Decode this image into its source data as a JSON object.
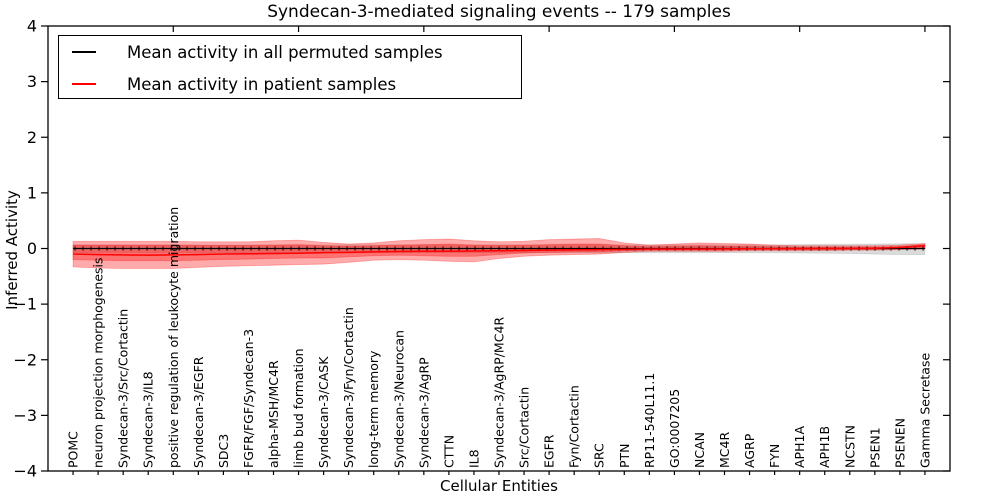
{
  "figure": {
    "background": "#ffffff"
  },
  "chart_data": {
    "type": "line",
    "title": "Syndecan-3-mediated signaling events -- 179 samples",
    "xlabel": "Cellular Entities",
    "ylabel": "Inferred Activity",
    "ylim": [
      -4,
      4
    ],
    "xlim": [
      0,
      36
    ],
    "grid": false,
    "ytick_values": [
      4,
      3,
      2,
      1,
      0,
      -1,
      -2,
      -3,
      -4
    ],
    "ytick_labels": [
      "4",
      "3",
      "2",
      "1",
      "0",
      "−1",
      "−2",
      "−3",
      "−4"
    ],
    "xtick_major_positions": [
      5,
      10,
      15,
      20,
      25,
      30,
      35
    ],
    "categories": [
      "POMC",
      "neuron projection morphogenesis",
      "Syndecan-3/Src/Cortactin",
      "Syndecan-3/IL8",
      "positive regulation of leukocyte migration",
      "Syndecan-3/EGFR",
      "SDC3",
      "FGFR/FGF/Syndecan-3",
      "alpha-MSH/MC4R",
      "limb bud formation",
      "Syndecan-3/CASK",
      "Syndecan-3/Fyn/Cortactin",
      "long-term memory",
      "Syndecan-3/Neurocan",
      "Syndecan-3/AgRP",
      "CTTN",
      "IL8",
      "Syndecan-3/AgRP/MC4R",
      "Src/Cortactin",
      "EGFR",
      "Fyn/Cortactin",
      "SRC",
      "PTN",
      "RP11-540L11.1",
      "GO:0007205",
      "NCAN",
      "MC4R",
      "AGRP",
      "FYN",
      "APH1A",
      "APH1B",
      "NCSTN",
      "PSEN1",
      "PSENEN",
      "Gamma Secretase"
    ],
    "legend": {
      "position": "upper left",
      "entries": [
        {
          "label": "Mean activity in all permuted samples",
          "color": "#000000"
        },
        {
          "label": "Mean activity in patient samples",
          "color": "#ff0000"
        }
      ]
    },
    "series": [
      {
        "name": "Mean activity in all permuted samples",
        "color": "#000000",
        "values": [
          0,
          0,
          0,
          0,
          0,
          0,
          0,
          0,
          0,
          0,
          0,
          0,
          0,
          0,
          0,
          0,
          0,
          0,
          0,
          0,
          0,
          0,
          0,
          0,
          0,
          0,
          0,
          0,
          0,
          0,
          0,
          0,
          0,
          0,
          0
        ]
      },
      {
        "name": "Mean activity in patient samples",
        "color": "#ff0000",
        "values": [
          -0.1,
          -0.11,
          -0.115,
          -0.12,
          -0.115,
          -0.11,
          -0.1,
          -0.095,
          -0.09,
          -0.085,
          -0.075,
          -0.07,
          -0.06,
          -0.055,
          -0.05,
          -0.05,
          -0.045,
          -0.04,
          -0.035,
          -0.03,
          -0.025,
          -0.02,
          -0.015,
          -0.01,
          -0.01,
          -0.008,
          -0.006,
          -0.005,
          -0.004,
          -0.002,
          0,
          0,
          0.005,
          0.02,
          0.05
        ]
      }
    ],
    "bands": [
      {
        "name": "permuted-stddev",
        "color": "#888888",
        "opacity": 0.3,
        "upper": [
          0.065,
          0.065,
          0.065,
          0.065,
          0.065,
          0.065,
          0.065,
          0.065,
          0.065,
          0.065,
          0.065,
          0.065,
          0.065,
          0.065,
          0.065,
          0.065,
          0.065,
          0.065,
          0.065,
          0.065,
          0.065,
          0.065,
          0.065,
          0.065,
          0.065,
          0.065,
          0.065,
          0.065,
          0.065,
          0.07,
          0.075,
          0.075,
          0.08,
          0.085,
          0.085
        ],
        "lower": [
          -0.075,
          -0.075,
          -0.075,
          -0.075,
          -0.075,
          -0.075,
          -0.075,
          -0.075,
          -0.075,
          -0.075,
          -0.075,
          -0.075,
          -0.075,
          -0.075,
          -0.075,
          -0.075,
          -0.075,
          -0.075,
          -0.075,
          -0.075,
          -0.075,
          -0.075,
          -0.075,
          -0.075,
          -0.075,
          -0.075,
          -0.075,
          -0.075,
          -0.075,
          -0.08,
          -0.085,
          -0.09,
          -0.1,
          -0.11,
          -0.11
        ]
      },
      {
        "name": "patient-stddev-outer",
        "color": "#ff0000",
        "opacity": 0.33,
        "upper": [
          0.13,
          0.13,
          0.13,
          0.13,
          0.13,
          0.12,
          0.12,
          0.12,
          0.14,
          0.15,
          0.11,
          0.08,
          0.1,
          0.14,
          0.16,
          0.17,
          0.14,
          0.12,
          0.13,
          0.16,
          0.17,
          0.18,
          0.1,
          0.06,
          0.08,
          0.1,
          0.09,
          0.08,
          0.06,
          0.05,
          0.05,
          0.05,
          0.05,
          0.06,
          0.09
        ],
        "lower": [
          -0.33,
          -0.35,
          -0.36,
          -0.36,
          -0.36,
          -0.34,
          -0.32,
          -0.31,
          -0.3,
          -0.29,
          -0.28,
          -0.25,
          -0.21,
          -0.2,
          -0.21,
          -0.23,
          -0.24,
          -0.18,
          -0.14,
          -0.12,
          -0.11,
          -0.1,
          -0.07,
          -0.05,
          -0.05,
          -0.05,
          -0.05,
          -0.04,
          -0.04,
          -0.04,
          -0.04,
          -0.03,
          -0.03,
          -0.02,
          -0.01
        ]
      },
      {
        "name": "patient-stddev-inner",
        "color": "#ff0000",
        "opacity": 0.33,
        "upper": [
          0.06,
          0.06,
          0.06,
          0.06,
          0.06,
          0.055,
          0.055,
          0.055,
          0.06,
          0.07,
          0.05,
          0.04,
          0.05,
          0.06,
          0.07,
          0.08,
          0.06,
          0.055,
          0.06,
          0.07,
          0.08,
          0.08,
          0.05,
          0.03,
          0.04,
          0.05,
          0.04,
          0.04,
          0.03,
          0.025,
          0.025,
          0.025,
          0.025,
          0.03,
          0.07
        ],
        "lower": [
          -0.2,
          -0.21,
          -0.22,
          -0.22,
          -0.22,
          -0.21,
          -0.2,
          -0.19,
          -0.18,
          -0.17,
          -0.17,
          -0.15,
          -0.13,
          -0.12,
          -0.13,
          -0.14,
          -0.14,
          -0.11,
          -0.08,
          -0.07,
          -0.06,
          -0.06,
          -0.04,
          -0.03,
          -0.03,
          -0.03,
          -0.03,
          -0.02,
          -0.02,
          -0.02,
          -0.02,
          -0.015,
          -0.015,
          -0.01,
          0.0
        ]
      }
    ]
  }
}
